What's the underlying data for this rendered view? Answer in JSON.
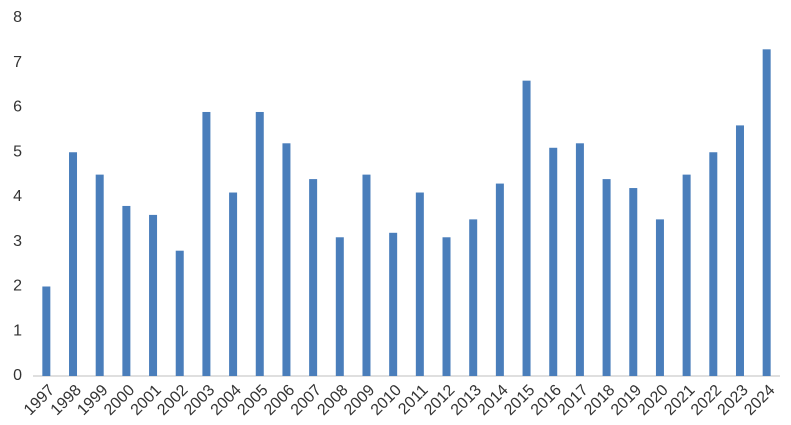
{
  "chart_data": {
    "type": "bar",
    "categories": [
      "1997",
      "1998",
      "1999",
      "2000",
      "2001",
      "2002",
      "2003",
      "2004",
      "2005",
      "2006",
      "2007",
      "2008",
      "2009",
      "2010",
      "2011",
      "2012",
      "2013",
      "2014",
      "2015",
      "2016",
      "2017",
      "2018",
      "2019",
      "2020",
      "2021",
      "2022",
      "2023",
      "2024"
    ],
    "values": [
      2.0,
      5.0,
      4.5,
      3.8,
      3.6,
      2.8,
      5.9,
      4.1,
      5.9,
      5.2,
      4.4,
      3.1,
      4.5,
      3.2,
      4.1,
      3.1,
      3.5,
      4.3,
      6.6,
      5.1,
      5.2,
      4.4,
      4.2,
      3.5,
      4.5,
      5.0,
      5.6,
      7.3
    ],
    "color": "#4a7ebb",
    "ylim": [
      0,
      8
    ],
    "yticks": [
      0,
      1,
      2,
      3,
      4,
      5,
      6,
      7,
      8
    ],
    "grid": false
  }
}
